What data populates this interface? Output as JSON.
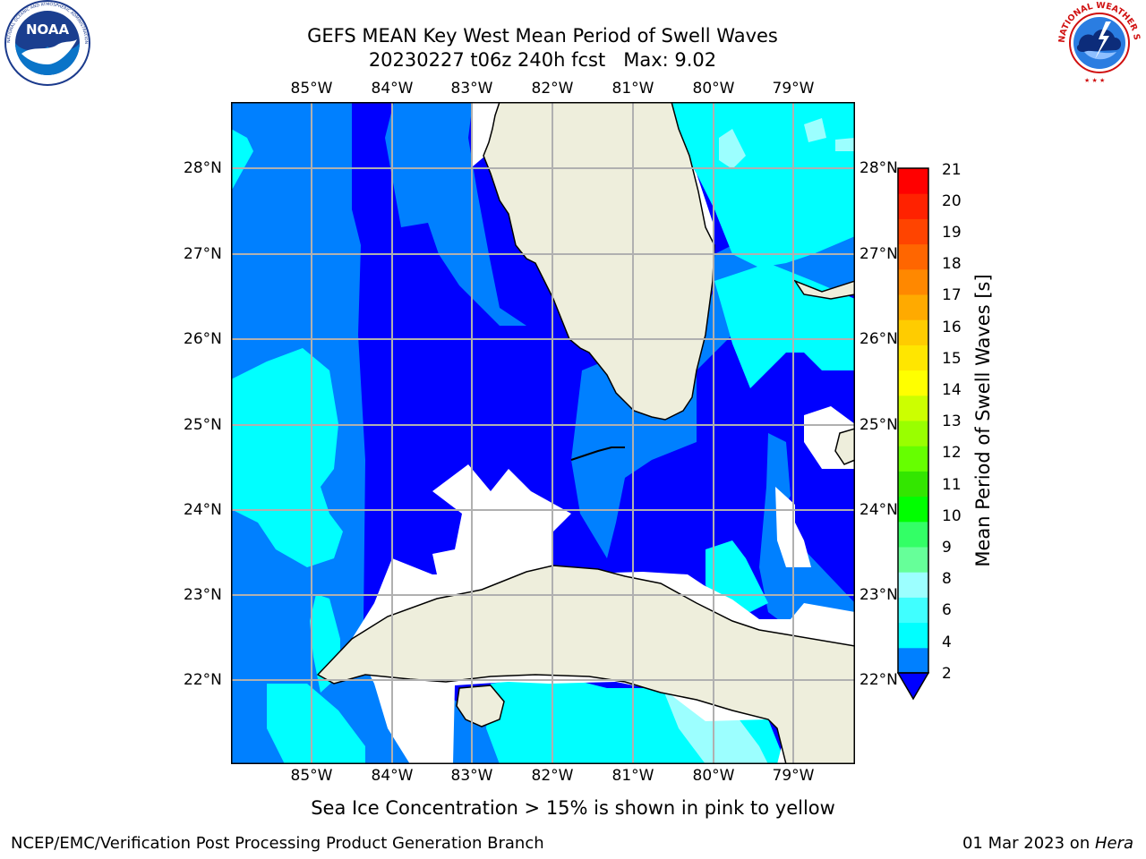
{
  "header": {
    "title_line1": "GEFS MEAN Key West Mean Period of Swell Waves",
    "title_line2": "20230227 t06z 240h fcst   Max: 9.02"
  },
  "logos": {
    "left": {
      "name": "NOAA",
      "ring_text": "NATIONAL OCEANIC AND ATMOSPHERIC ADMINISTRATION · U.S. DEPARTMENT OF COMMERCE"
    },
    "right": {
      "name": "NATIONAL WEATHER SERVICE"
    }
  },
  "map": {
    "lon_labels": [
      "85°W",
      "84°W",
      "83°W",
      "82°W",
      "81°W",
      "80°W",
      "79°W"
    ],
    "lat_labels": [
      "28°N",
      "27°N",
      "26°N",
      "25°N",
      "24°N",
      "23°N",
      "22°N"
    ],
    "colors": {
      "land": "#eeeedc",
      "missing": "#ffffff",
      "bin_2_4": "#0000ff",
      "bin_4_6": "#0080ff",
      "bin_6_8": "#00ffff",
      "bin_8_9": "#9cffff",
      "gridline": "#b0b0b0",
      "coastline": "#000000"
    }
  },
  "colorbar": {
    "label": "Mean Period of Swell Waves [s]",
    "ticks": [
      "21",
      "20",
      "19",
      "18",
      "17",
      "16",
      "15",
      "14",
      "13",
      "12",
      "11",
      "10",
      "9",
      "8",
      "6",
      "4",
      "2"
    ],
    "colors_bottom_to_top": [
      "#0080ff",
      "#00ffff",
      "#40ffff",
      "#9cffff",
      "#66ff99",
      "#33ff66",
      "#00ff00",
      "#33e600",
      "#66ff00",
      "#99ff00",
      "#ccff00",
      "#ffff00",
      "#ffe600",
      "#ffcc00",
      "#ffaa00",
      "#ff8800",
      "#ff6600",
      "#ff4400",
      "#ff2200",
      "#ff0000"
    ],
    "extend_color": "#0000ff"
  },
  "footer": {
    "subtitle": "Sea Ice Concentration > 15% is shown in pink to yellow",
    "left": "NCEP/EMC/Verification Post Processing Product Generation Branch",
    "right_prefix": "01 Mar 2023 on ",
    "right_host": "Hera"
  }
}
